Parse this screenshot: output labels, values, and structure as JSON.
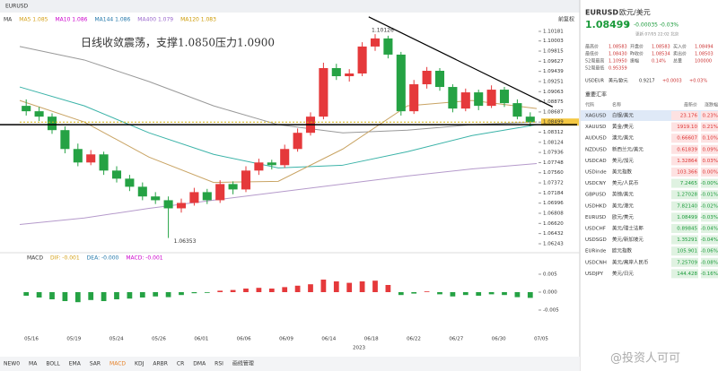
{
  "toolbar": {
    "tab": "EURUSD",
    "right": "前复权"
  },
  "chart": {
    "ma_legend": [
      {
        "label": "MA",
        "color": "#333"
      },
      {
        "label": "MA5 1.085",
        "color": "#d4a017"
      },
      {
        "label": "MA10 1.086",
        "color": "#c0c"
      },
      {
        "label": "MA144 1.086",
        "color": "#27a"
      },
      {
        "label": "MA400 1.079",
        "color": "#96c"
      },
      {
        "label": "MA120 1.083",
        "color": "#c90"
      }
    ],
    "annotation": "日线收敛震荡，支撑1.0850压力1.0900",
    "high_label": "1.10126",
    "low_label": "1.06353",
    "ylim": [
      1.06243,
      1.10181
    ],
    "yticks": [
      1.10181,
      {
        "value": 1.10003,
        "label": "1.10003"
      },
      1.09815,
      1.09627,
      1.09439,
      1.09251,
      1.09063,
      1.08875,
      1.08687,
      1.08499,
      1.08312,
      1.08124,
      1.07936,
      1.07748,
      {
        "value": 1.0756,
        "label": "1.07560"
      },
      1.07372,
      1.07184,
      1.06996,
      1.06808,
      {
        "value": 1.0662,
        "label": "1.06620"
      },
      1.06432,
      1.06243
    ],
    "last_price": 1.08499,
    "support_line": 1.0845,
    "trend_line": [
      [
        27,
        1.1025
      ],
      [
        39.5,
        1.0878
      ]
    ],
    "candles": [
      [
        1.088,
        1.0892,
        1.0862,
        1.087
      ],
      [
        1.087,
        1.0878,
        1.0852,
        1.086
      ],
      [
        1.086,
        1.0866,
        1.0828,
        1.0835
      ],
      [
        1.0835,
        1.0842,
        1.0792,
        1.08
      ],
      [
        1.08,
        1.081,
        1.0768,
        1.0775
      ],
      [
        1.0775,
        1.0798,
        1.077,
        1.079
      ],
      [
        1.079,
        1.0795,
        1.0752,
        1.076
      ],
      [
        1.076,
        1.0768,
        1.0738,
        1.0745
      ],
      [
        1.0745,
        1.0752,
        1.0722,
        1.073
      ],
      [
        1.073,
        1.0738,
        1.0705,
        1.0712
      ],
      [
        1.0712,
        1.072,
        1.0698,
        1.0705
      ],
      [
        1.0705,
        1.0712,
        1.0635,
        1.069
      ],
      [
        1.069,
        1.0708,
        1.0682,
        1.07
      ],
      [
        1.07,
        1.0728,
        1.0695,
        1.072
      ],
      [
        1.072,
        1.0726,
        1.0698,
        1.0705
      ],
      [
        1.0705,
        1.0742,
        1.07,
        1.0735
      ],
      [
        1.0735,
        1.074,
        1.0716,
        1.0725
      ],
      [
        1.0725,
        1.0768,
        1.072,
        1.076
      ],
      [
        1.076,
        1.0782,
        1.0752,
        1.0775
      ],
      [
        1.0775,
        1.078,
        1.0762,
        1.077
      ],
      [
        1.077,
        1.0808,
        1.0765,
        1.08
      ],
      [
        1.08,
        1.0838,
        1.0795,
        1.083
      ],
      [
        1.083,
        1.0868,
        1.0825,
        1.086
      ],
      [
        1.086,
        1.096,
        1.0855,
        1.095
      ],
      [
        1.095,
        1.0958,
        1.0928,
        1.0935
      ],
      [
        1.0935,
        1.0948,
        1.0925,
        1.094
      ],
      [
        1.094,
        1.0998,
        1.0935,
        1.099
      ],
      [
        1.099,
        1.1013,
        1.0982,
        1.1005
      ],
      [
        1.1005,
        1.101,
        1.0968,
        1.0975
      ],
      [
        1.0975,
        1.098,
        1.0862,
        1.087
      ],
      [
        1.087,
        1.0928,
        1.0865,
        1.092
      ],
      [
        1.092,
        1.0952,
        1.0912,
        1.0945
      ],
      [
        1.0945,
        1.095,
        1.0908,
        1.0915
      ],
      [
        1.0915,
        1.092,
        1.0868,
        1.0875
      ],
      [
        1.0875,
        1.0912,
        1.087,
        1.0905
      ],
      [
        1.0905,
        1.091,
        1.0872,
        1.088
      ],
      [
        1.088,
        1.0918,
        1.0876,
        1.091
      ],
      [
        1.091,
        1.0915,
        1.0878,
        1.0885
      ],
      [
        1.0885,
        1.0892,
        1.0855,
        1.086
      ],
      [
        1.086,
        1.0868,
        1.0842,
        1.085
      ]
    ],
    "ma_lines": [
      {
        "color": "#999",
        "values": [
          1.099,
          1.0965,
          1.0925,
          1.088,
          1.0845,
          1.083,
          1.0835,
          1.0845,
          1.085
        ]
      },
      {
        "color": "#3bb3a8",
        "values": [
          1.0915,
          1.088,
          1.083,
          1.079,
          1.0765,
          1.077,
          1.0795,
          1.0825,
          1.0845
        ]
      },
      {
        "color": "#c9a464",
        "values": [
          1.089,
          1.085,
          1.0785,
          1.0738,
          1.074,
          1.08,
          1.088,
          1.089,
          1.0875
        ]
      },
      {
        "color": "#b59acb",
        "values": [
          1.066,
          1.0672,
          1.069,
          1.0705,
          1.072,
          1.0735,
          1.075,
          1.0763,
          1.0773
        ]
      }
    ],
    "dates": [
      "05/16",
      "05/19",
      "05/24",
      "05/26",
      "06/01",
      "06/06",
      "06/09",
      "06/14",
      "06/18",
      "06/22",
      "06/27",
      "06/30",
      "07/05"
    ],
    "year": "2023",
    "macd": {
      "legend": [
        "MACD",
        "DIF: -0.001",
        "DEA: -0.000",
        "MACD: -0.001"
      ],
      "ylim": [
        -0.011,
        0.009
      ],
      "yticks": [
        0.005,
        {
          "value": 0,
          "label": "0.000"
        },
        -0.005
      ],
      "hist": [
        -0.001,
        -0.0015,
        -0.002,
        -0.0025,
        -0.0028,
        -0.0022,
        -0.0025,
        -0.002,
        -0.0018,
        -0.0015,
        -0.0012,
        -0.0014,
        -0.0008,
        -0.0003,
        -0.0002,
        0.0004,
        0.0006,
        0.001,
        0.0012,
        0.001,
        0.0014,
        0.0018,
        0.0022,
        0.0035,
        0.003,
        0.0026,
        0.003,
        0.0032,
        0.002,
        -0.0008,
        -0.0004,
        0.0002,
        -0.0006,
        -0.0012,
        -0.0008,
        -0.001,
        -0.0006,
        -0.0008,
        -0.0014,
        -0.0016
      ]
    }
  },
  "indicators": [
    "NEW0",
    "MA",
    "BOLL",
    "EMA",
    "SAR",
    "MACD",
    "KDJ",
    "ARBR",
    "CR",
    "DMA",
    "RSI",
    "画线管理"
  ],
  "quote": {
    "code": "EURUSD",
    "name": "欧元/美元",
    "price": "1.08499",
    "arrow": "⬇",
    "change": "-0.00035 -0.03%",
    "time": "更新 07/05 22:02 北京",
    "fields": [
      [
        "最高价",
        "1.08583",
        "开盘价",
        "1.08583",
        "买入价",
        "1.08494"
      ],
      [
        "最低价",
        "1.08430",
        "昨收价",
        "1.08534",
        "卖出价",
        "1.08503"
      ],
      [
        "52周最高",
        "1.10950",
        "振幅",
        "0.14%",
        "总量",
        "100000"
      ],
      [
        "52周最低",
        "0.95359",
        "",
        "",
        "",
        ""
      ]
    ],
    "related": [
      "USDEUR",
      "美元/欧元",
      "0.9217",
      "+0.0003",
      "+0.03%"
    ]
  },
  "rates": {
    "title": "重要汇率",
    "header": [
      "代码",
      "名称",
      "最新价",
      "涨跌幅"
    ],
    "rows": [
      [
        "XAGUSD",
        "白银/美元",
        "23.176",
        "0.23%"
      ],
      [
        "XAUUSD",
        "黄金/美元",
        "1919.10",
        "0.21%"
      ],
      [
        "AUDUSD",
        "澳元/美元",
        "0.66607",
        "0.10%"
      ],
      [
        "NZDUSD",
        "新西兰元/美元",
        "0.61839",
        "0.09%"
      ],
      [
        "USDCAD",
        "美元/加元",
        "1.32864",
        "0.03%"
      ],
      [
        "USDinde",
        "美元指数",
        "103.366",
        "0.00%"
      ],
      [
        "USDCNY",
        "美元/人民币",
        "7.2465",
        "-0.00%"
      ],
      [
        "GBPUSD",
        "英镑/美元",
        "1.27028",
        "-0.01%"
      ],
      [
        "USDHKD",
        "美元/港元",
        "7.82140",
        "-0.02%"
      ],
      [
        "EURUSD",
        "欧元/美元",
        "1.08499",
        "-0.03%"
      ],
      [
        "USDCHF",
        "美元/瑞士法郎",
        "0.89845",
        "-0.04%"
      ],
      [
        "USDSGD",
        "美元/新加坡元",
        "1.35291",
        "-0.04%"
      ],
      [
        "EURinde",
        "欧元指数",
        "105.901",
        "-0.06%"
      ],
      [
        "USDCNH",
        "美元/离岸人民币",
        "7.25709",
        "-0.08%"
      ],
      [
        "USDJPY",
        "美元/日元",
        "144.428",
        "-0.16%"
      ]
    ]
  },
  "watermark": "@投资人可可"
}
